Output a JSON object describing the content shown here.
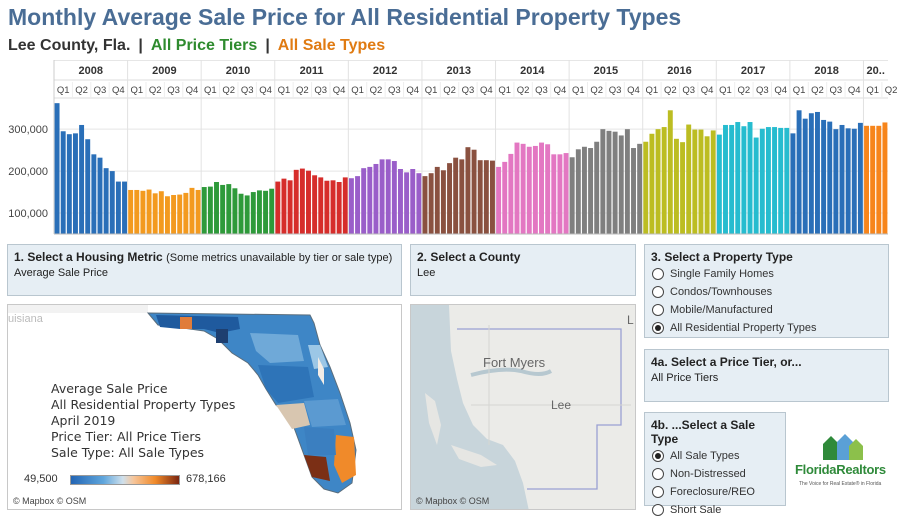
{
  "header": {
    "title": "Monthly Average Sale Price for All Residential Property Types",
    "county": "Lee County, Fla.",
    "sep": "|",
    "price_tiers": "All Price Tiers",
    "sale_types": "All Sale Types"
  },
  "colors": {
    "title": "#4a6d95",
    "years": [
      "#2a6fb8",
      "#f39a1f",
      "#2e9a3a",
      "#d62d2b",
      "#9a5ec9",
      "#8a5140",
      "#e377c2",
      "#7f7f7f",
      "#bcbd22",
      "#26bccf",
      "#2a6fb8",
      "#f7851b"
    ]
  },
  "chart_data": {
    "type": "bar",
    "years": [
      "2008",
      "2009",
      "2010",
      "2011",
      "2012",
      "2013",
      "2014",
      "2015",
      "2016",
      "2017",
      "2018",
      "20.."
    ],
    "quarters": [
      "Q1",
      "Q2",
      "Q3",
      "Q4"
    ],
    "last_year_quarters": [
      "Q1",
      "Q2"
    ],
    "yticks": [
      "100,000",
      "200,000",
      "300,000"
    ],
    "ylim": [
      50000,
      360000
    ],
    "values": [
      [
        362000,
        295000,
        288000,
        290000,
        310000,
        276000,
        240000,
        232000,
        207000,
        200000,
        175000,
        175000
      ],
      [
        155000,
        155000,
        153000,
        156000,
        147000,
        152000,
        140000,
        143000,
        144000,
        148000,
        160000,
        155000
      ],
      [
        162000,
        163000,
        174000,
        167000,
        169000,
        159000,
        146000,
        142000,
        150000,
        154000,
        153000,
        158000
      ],
      [
        175000,
        182000,
        178000,
        203000,
        206000,
        201000,
        190000,
        185000,
        177000,
        178000,
        174000,
        185000
      ],
      [
        183000,
        188000,
        207000,
        210000,
        217000,
        228000,
        228000,
        224000,
        205000,
        197000,
        205000,
        195000
      ],
      [
        188000,
        195000,
        210000,
        202000,
        219000,
        232000,
        228000,
        257000,
        251000,
        226000,
        226000,
        225000
      ],
      [
        210000,
        222000,
        241000,
        268000,
        265000,
        258000,
        260000,
        268000,
        264000,
        240000,
        240000,
        243000
      ],
      [
        233000,
        252000,
        258000,
        255000,
        270000,
        300000,
        296000,
        294000,
        285000,
        300000,
        255000,
        265000
      ],
      [
        270000,
        289000,
        300000,
        305000,
        345000,
        277000,
        269000,
        311000,
        299000,
        299000,
        283000,
        297000
      ],
      [
        287000,
        310000,
        310000,
        317000,
        307000,
        317000,
        280000,
        301000,
        305000,
        305000,
        303000,
        303000
      ],
      [
        290000,
        345000,
        325000,
        338000,
        341000,
        322000,
        318000,
        300000,
        310000,
        302000,
        301000,
        315000
      ],
      [
        308000,
        308000,
        308000,
        316000
      ]
    ]
  },
  "panels": {
    "metric": {
      "title": "1. Select a Housing Metric",
      "note": "(Some metrics unavailable by tier or sale type)",
      "value": "Average Sale Price"
    },
    "county": {
      "title": "2. Select a County",
      "value": "Lee"
    },
    "property_type": {
      "title": "3. Select a Property Type",
      "options": [
        "Single Family Homes",
        "Condos/Townhouses",
        "Mobile/Manufactured",
        "All Residential Property Types"
      ],
      "selected": "All Residential Property Types"
    },
    "price_tier": {
      "title": "4a. Select a Price Tier, or...",
      "value": "All Price Tiers"
    },
    "sale_type": {
      "title": "4b. ...Select a Sale Type",
      "options": [
        "All Sale Types",
        "Non-Distressed",
        "Foreclosure/REO",
        "Short Sale"
      ],
      "selected": "All Sale Types"
    }
  },
  "florida_map": {
    "lines": [
      "Average Sale Price",
      "All Residential Property Types",
      "April 2019",
      "Price Tier: All Price Tiers",
      "Sale Type: All Sale Types"
    ],
    "legend_min": "49,500",
    "legend_max": "678,166",
    "region_label": "uisiana",
    "attribution": "© Mapbox © OSM"
  },
  "lee_map": {
    "city": "Fort Myers",
    "county": "Lee",
    "edge_letter": "L",
    "attribution": "© Mapbox © OSM"
  },
  "logo": {
    "wordmark": "FloridaRealtors",
    "tagline": "The Voice for Real Estate® in Florida"
  }
}
